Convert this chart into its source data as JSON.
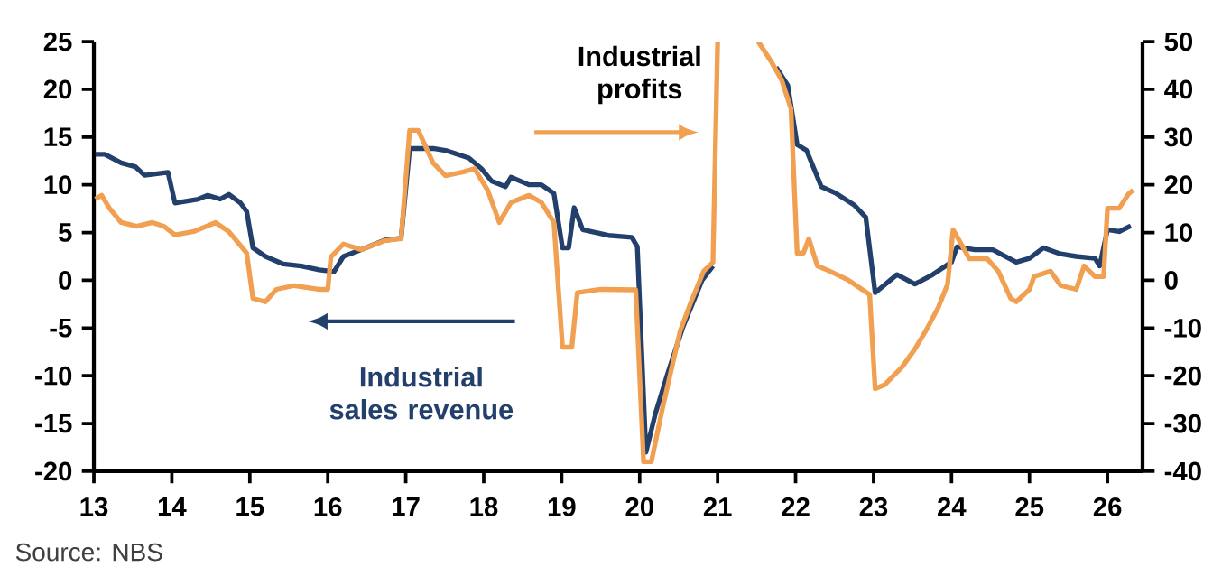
{
  "chart_data": {
    "type": "line",
    "xlim": [
      13,
      26.45
    ],
    "xticks": [
      13,
      14,
      15,
      16,
      17,
      18,
      19,
      20,
      21,
      22,
      23,
      24,
      25,
      26
    ],
    "ylim": [
      -20,
      25
    ],
    "yticks": [
      -20,
      -15,
      -10,
      -5,
      0,
      5,
      10,
      15,
      20,
      25
    ],
    "y2lim": [
      -40,
      50
    ],
    "y2ticks": [
      -40,
      -30,
      -20,
      -10,
      0,
      10,
      20,
      30,
      40,
      50
    ],
    "series": [
      {
        "name": "Industrial sales revenue",
        "color": "#23406c",
        "axis": "y",
        "x": [
          13.02,
          13.14,
          13.35,
          13.53,
          13.65,
          13.95,
          14.04,
          14.34,
          14.46,
          14.62,
          14.73,
          14.88,
          14.96,
          15.04,
          15.2,
          15.43,
          15.66,
          15.89,
          16.08,
          16.2,
          16.43,
          16.73,
          16.94,
          17.05,
          17.35,
          17.51,
          17.81,
          17.97,
          18.1,
          18.28,
          18.35,
          18.58,
          18.74,
          18.9,
          19.01,
          19.09,
          19.16,
          19.27,
          19.6,
          19.9,
          19.97,
          20.08,
          20.2,
          20.35,
          20.55,
          20.8,
          20.94,
          21.0,
          21.2,
          21.52,
          21.75,
          21.9,
          22.02,
          22.14,
          22.33,
          22.52,
          22.75,
          22.9,
          23.02,
          23.3,
          23.53,
          23.76,
          24.0,
          24.07,
          24.3,
          24.53,
          24.83,
          25.0,
          25.18,
          25.38,
          25.6,
          25.84,
          25.9,
          26.0,
          26.15,
          26.3
        ],
        "values": [
          13.2,
          13.2,
          12.3,
          11.9,
          11.0,
          11.3,
          8.1,
          8.5,
          8.9,
          8.5,
          9.0,
          8.1,
          7.2,
          3.4,
          2.5,
          1.7,
          1.5,
          1.1,
          0.9,
          2.5,
          3.2,
          4.2,
          4.4,
          13.8,
          13.8,
          13.6,
          12.8,
          11.7,
          10.4,
          9.8,
          10.8,
          10.0,
          10.0,
          9.1,
          3.4,
          3.4,
          7.6,
          5.3,
          4.7,
          4.5,
          3.5,
          -18,
          -14,
          -10,
          -5,
          0,
          1.5,
          null,
          null,
          null,
          22.3,
          20.4,
          14.2,
          13.6,
          9.8,
          9.1,
          7.9,
          6.6,
          -1.3,
          0.6,
          -0.4,
          0.6,
          1.9,
          3.5,
          3.2,
          3.2,
          1.9,
          2.3,
          3.4,
          2.8,
          2.5,
          2.3,
          1.5,
          5.3,
          5.1,
          5.7
        ]
      },
      {
        "name": "Industrial profits",
        "color": "#f0a050",
        "axis": "y2",
        "x": [
          13.02,
          13.1,
          13.2,
          13.35,
          13.55,
          13.75,
          13.9,
          14.04,
          14.28,
          14.56,
          14.73,
          14.96,
          15.04,
          15.2,
          15.34,
          15.57,
          15.88,
          16.0,
          16.04,
          16.2,
          16.43,
          16.73,
          16.94,
          17.05,
          17.16,
          17.35,
          17.51,
          17.74,
          17.88,
          18.05,
          18.2,
          18.35,
          18.58,
          18.74,
          18.9,
          19.01,
          19.13,
          19.2,
          19.5,
          19.95,
          20.05,
          20.15,
          20.29,
          20.52,
          20.66,
          20.82,
          20.94,
          21.0,
          21.2,
          21.52,
          21.68,
          21.82,
          21.94,
          22.02,
          22.1,
          22.17,
          22.28,
          22.44,
          22.68,
          22.95,
          23.02,
          23.14,
          23.37,
          23.53,
          23.67,
          23.83,
          23.95,
          24.02,
          24.23,
          24.46,
          24.6,
          24.76,
          24.83,
          25.0,
          25.06,
          25.27,
          25.4,
          25.6,
          25.7,
          25.84,
          25.95,
          26.0,
          26.15,
          26.27,
          26.33
        ],
        "values": [
          17,
          17.8,
          15.1,
          12.1,
          11.3,
          12.1,
          11.3,
          9.5,
          10.2,
          12.1,
          10.2,
          5.7,
          -3.8,
          -4.5,
          -1.9,
          -1.1,
          -1.9,
          -1.9,
          4.9,
          7.6,
          6.4,
          8.3,
          8.7,
          31.4,
          31.4,
          24.6,
          21.9,
          22.7,
          23.4,
          18.9,
          12.1,
          16.3,
          17.8,
          16.3,
          12.1,
          -14,
          -14,
          -2.6,
          -1.9,
          -2,
          -38,
          -38,
          -27,
          -10.6,
          -4.5,
          1.9,
          3.8,
          50,
          null,
          50,
          46,
          42,
          36,
          5.7,
          5.7,
          8.7,
          3.0,
          1.9,
          0,
          -3,
          -22.7,
          -21.9,
          -18.1,
          -14.4,
          -10.6,
          -5.7,
          -0.8,
          10.6,
          4.5,
          4.5,
          1.9,
          -3.8,
          -4.5,
          -1.9,
          0.8,
          1.9,
          -1.1,
          -1.9,
          3,
          0.8,
          0.8,
          15.1,
          15.1,
          18.1,
          18.9
        ]
      }
    ],
    "annotations": [
      "Source: NBS"
    ]
  }
}
